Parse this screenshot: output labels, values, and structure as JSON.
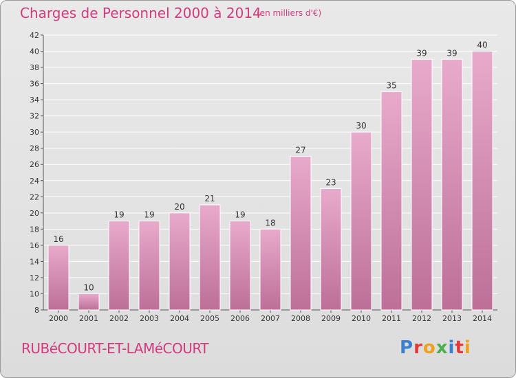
{
  "header": {
    "title": "Charges de Personnel 2000 à 2014",
    "subtitle": "(en milliers d'€)"
  },
  "footer": {
    "commune": "RUBéCOURT-ET-LAMéCOURT",
    "logo_text": "Proxiti"
  },
  "colors": {
    "title": "#d23a80",
    "bar_light": "#e8aacb",
    "bar_dark": "#bd6f98",
    "logo_letters": [
      "#3a7fd0",
      "#e23a3a",
      "#f0a020",
      "#4bb04b",
      "#3a7fd0",
      "#e23a3a",
      "#f0a020"
    ]
  },
  "chart_data": {
    "type": "bar",
    "categories": [
      "2000",
      "2001",
      "2002",
      "2003",
      "2004",
      "2005",
      "2006",
      "2007",
      "2008",
      "2009",
      "2010",
      "2011",
      "2012",
      "2013",
      "2014"
    ],
    "values": [
      16,
      10,
      19,
      19,
      20,
      21,
      19,
      18,
      27,
      23,
      30,
      35,
      39,
      39,
      40
    ],
    "title": "Charges de Personnel 2000 à 2014",
    "ylim": [
      8,
      42
    ],
    "yticks": [
      8,
      10,
      12,
      14,
      16,
      18,
      20,
      22,
      24,
      26,
      28,
      30,
      32,
      34,
      36,
      38,
      40,
      42
    ],
    "grid": true,
    "data_labels": true
  }
}
